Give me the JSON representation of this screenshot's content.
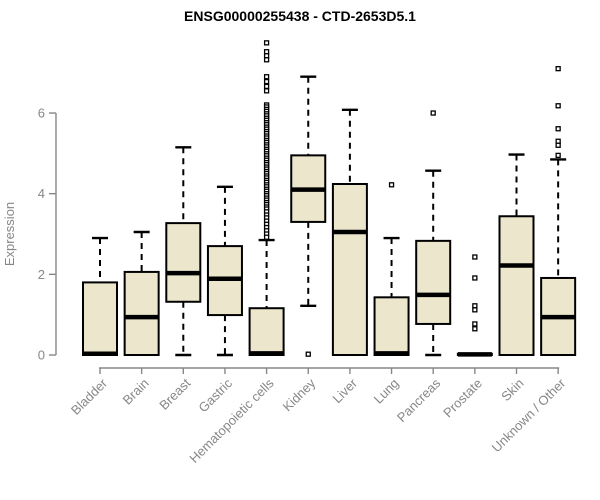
{
  "chart_data": {
    "type": "boxplot",
    "title": "ENSG00000255438 - CTD-2653D5.1",
    "ylabel": "Expression",
    "xlabel": "",
    "yticks": [
      0,
      2,
      4,
      6
    ],
    "ylim": [
      -0.2,
      7.9
    ],
    "grid": false,
    "legend": false,
    "colors": {
      "box_fill": "#ece7cc",
      "box_stroke": "#000000",
      "whisker": "#000000",
      "outlier": "#000000",
      "axis": "#878787",
      "tick_label": "#878787",
      "title": "#000000"
    },
    "categories": [
      "Bladder",
      "Brain",
      "Breast",
      "Gastric",
      "Hematopoietic cells",
      "Kidney",
      "Liver",
      "Lung",
      "Pancreas",
      "Prostate",
      "Skin",
      "Unknown / Other"
    ],
    "series": [
      {
        "category": "Bladder",
        "whisker_low": 0,
        "q1": 0,
        "median": 0.03,
        "q3": 1.8,
        "whisker_high": 2.9,
        "outliers": []
      },
      {
        "category": "Brain",
        "whisker_low": 0,
        "q1": 0,
        "median": 0.94,
        "q3": 2.06,
        "whisker_high": 3.05,
        "outliers": []
      },
      {
        "category": "Breast",
        "whisker_low": 0,
        "q1": 1.32,
        "median": 2.03,
        "q3": 3.27,
        "whisker_high": 5.15,
        "outliers": []
      },
      {
        "category": "Gastric",
        "whisker_low": 0,
        "q1": 0.99,
        "median": 1.89,
        "q3": 2.7,
        "whisker_high": 4.17,
        "outliers": []
      },
      {
        "category": "Hematopoietic cells",
        "whisker_low": 0,
        "q1": 0,
        "median": 0.04,
        "q3": 1.16,
        "whisker_high": 2.85,
        "outliers": [
          7.74,
          7.52,
          7.42,
          7.32,
          6.9,
          6.78,
          6.66,
          6.55,
          6.2,
          6.15,
          6.09,
          6.04,
          5.98,
          5.93,
          5.87,
          5.82,
          5.76,
          5.71,
          5.65,
          5.6,
          5.54,
          5.49,
          5.43,
          5.38,
          5.32,
          5.27,
          5.21,
          5.16,
          5.1,
          5.05,
          4.99,
          4.94,
          4.88,
          4.83,
          4.77,
          4.72,
          4.66,
          4.61,
          4.55,
          4.5,
          4.44,
          4.39,
          4.33,
          4.28,
          4.22,
          4.17,
          4.11,
          4.06,
          4.0,
          3.95,
          3.89,
          3.84,
          3.78,
          3.73,
          3.67,
          3.62,
          3.55,
          3.47,
          3.4,
          3.32,
          3.24,
          3.16,
          3.08,
          3.0,
          2.92
        ]
      },
      {
        "category": "Kidney",
        "whisker_low": 1.22,
        "q1": 3.3,
        "median": 4.1,
        "q3": 4.95,
        "whisker_high": 6.9,
        "outliers": [
          0.02
        ]
      },
      {
        "category": "Liver",
        "whisker_low": 0,
        "q1": 0,
        "median": 3.05,
        "q3": 4.24,
        "whisker_high": 6.08,
        "outliers": []
      },
      {
        "category": "Lung",
        "whisker_low": 0,
        "q1": 0,
        "median": 0.04,
        "q3": 1.43,
        "whisker_high": 2.9,
        "outliers": [
          4.22
        ]
      },
      {
        "category": "Pancreas",
        "whisker_low": 0,
        "q1": 0.77,
        "median": 1.49,
        "q3": 2.83,
        "whisker_high": 4.57,
        "outliers": [
          6.0
        ]
      },
      {
        "category": "Prostate",
        "whisker_low": 0,
        "q1": 0,
        "median": 0.015,
        "q3": 0.03,
        "whisker_high": 0.03,
        "outliers": [
          2.43,
          1.91,
          1.22,
          1.12,
          0.77,
          0.65
        ]
      },
      {
        "category": "Skin",
        "whisker_low": 0,
        "q1": 0,
        "median": 2.22,
        "q3": 3.44,
        "whisker_high": 4.97,
        "outliers": []
      },
      {
        "category": "Unknown / Other",
        "whisker_low": 0,
        "q1": 0,
        "median": 0.94,
        "q3": 1.91,
        "whisker_high": 4.85,
        "outliers": [
          7.1,
          6.18,
          5.61,
          5.3,
          5.2,
          4.95
        ]
      }
    ]
  }
}
